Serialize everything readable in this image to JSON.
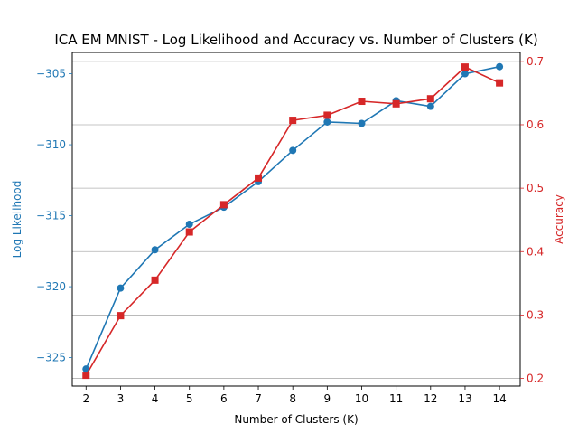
{
  "chart_data": {
    "type": "line",
    "title": "ICA EM MNIST - Log Likelihood and Accuracy vs. Number of Clusters (K)",
    "xlabel": "Number of Clusters (K)",
    "x": [
      2,
      3,
      4,
      5,
      6,
      7,
      8,
      9,
      10,
      11,
      12,
      13,
      14
    ],
    "xlim": [
      1.6,
      14.6
    ],
    "grid": "horizontal, right axis",
    "legend": "none",
    "left_axis": {
      "label": "Log Likelihood",
      "color": "#1f77b4",
      "ylim": [
        -327,
        -303.5
      ],
      "ticks": [
        -325,
        -320,
        -315,
        -310,
        -305
      ],
      "tick_labels": [
        "−325",
        "−320",
        "−315",
        "−310",
        "−305"
      ]
    },
    "right_axis": {
      "label": "Accuracy",
      "color": "#d62728",
      "ylim": [
        0.188,
        0.714
      ],
      "ticks": [
        0.2,
        0.3,
        0.4,
        0.5,
        0.6,
        0.7
      ],
      "tick_labels": [
        "0.2",
        "0.3",
        "0.4",
        "0.5",
        "0.6",
        "0.7"
      ]
    },
    "series": [
      {
        "axis": "left",
        "color": "#1f77b4",
        "marker": "circle",
        "values": [
          -325.8,
          -320.1,
          -317.4,
          -315.6,
          -314.4,
          -312.6,
          -310.4,
          -308.4,
          -308.5,
          -306.9,
          -307.3,
          -305.0,
          -304.5
        ]
      },
      {
        "axis": "right",
        "color": "#d62728",
        "marker": "square",
        "values": [
          0.205,
          0.299,
          0.355,
          0.431,
          0.474,
          0.516,
          0.607,
          0.615,
          0.637,
          0.633,
          0.641,
          0.691,
          0.666
        ]
      }
    ]
  }
}
